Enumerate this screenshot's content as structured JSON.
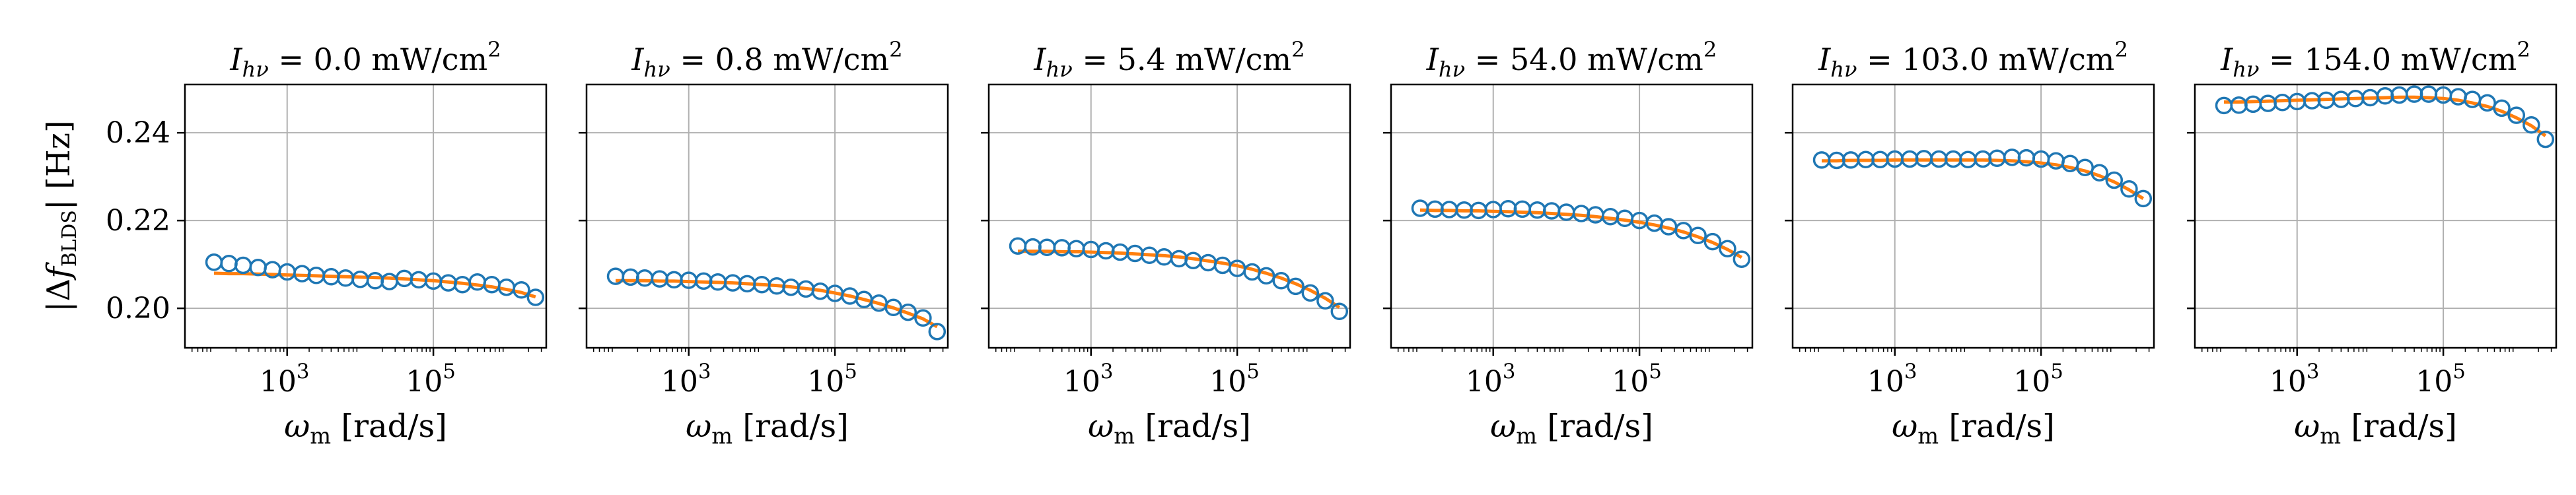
{
  "figure": {
    "ylabel": "|Δf",
    "ylabel_sub": "BLDS",
    "ylabel_rest": "| [Hz]",
    "xlabel_main": "ω",
    "xlabel_sub": "m",
    "xlabel_rest": " [rad/s]",
    "panel_title_var": "I",
    "panel_title_sub": "hν",
    "panel_title_unit": "mW/cm",
    "panel_title_exp": "2"
  },
  "chart_data": [
    {
      "type": "scatter",
      "title": "I_hν = 0.0 mW/cm²",
      "intensity": "0.0",
      "xlabel": "ω_m [rad/s]",
      "ylabel": "|Δf_BLDS| [Hz]",
      "xscale": "log",
      "xlim": [
        40,
        3500000
      ],
      "ylim": [
        0.191,
        0.251
      ],
      "xticks": [
        1000,
        100000
      ],
      "xtick_labels": [
        "10^3",
        "10^5"
      ],
      "yticks": [
        0.2,
        0.22,
        0.24
      ],
      "ytick_labels": [
        "0.20",
        "0.22",
        "0.24"
      ],
      "grid": true,
      "x": [
        100,
        160,
        250,
        400,
        630,
        1000,
        1600,
        2500,
        4000,
        6300,
        10000,
        16000,
        25000,
        40000,
        63000,
        100000,
        160000,
        250000,
        400000,
        630000,
        1000000,
        1600000,
        2500000
      ],
      "series": [
        {
          "type": "scatter",
          "marker": "open-circle",
          "color": "#1f77b4",
          "values": [
            0.2105,
            0.2102,
            0.2098,
            0.2093,
            0.2088,
            0.2083,
            0.2079,
            0.2075,
            0.2072,
            0.2069,
            0.2066,
            0.2063,
            0.2061,
            0.2068,
            0.2065,
            0.2062,
            0.2058,
            0.2054,
            0.206,
            0.2054,
            0.2048,
            0.2042,
            0.2025
          ]
        },
        {
          "type": "line",
          "color": "#ff7f0e",
          "values": [
            0.208,
            0.2079,
            0.2079,
            0.2078,
            0.2077,
            0.2076,
            0.2075,
            0.2074,
            0.2073,
            0.2072,
            0.2071,
            0.207,
            0.2069,
            0.2067,
            0.2065,
            0.2063,
            0.206,
            0.2057,
            0.2053,
            0.2049,
            0.2043,
            0.2036,
            0.2026
          ]
        }
      ]
    },
    {
      "type": "scatter",
      "title": "I_hν = 0.8 mW/cm²",
      "intensity": "0.8",
      "xlabel": "ω_m [rad/s]",
      "ylabel": "|Δf_BLDS| [Hz]",
      "xscale": "log",
      "xlim": [
        40,
        3500000
      ],
      "ylim": [
        0.191,
        0.251
      ],
      "xticks": [
        1000,
        100000
      ],
      "xtick_labels": [
        "10^3",
        "10^5"
      ],
      "yticks": [
        0.2,
        0.22,
        0.24
      ],
      "grid": true,
      "x": [
        100,
        160,
        250,
        400,
        630,
        1000,
        1600,
        2500,
        4000,
        6300,
        10000,
        16000,
        25000,
        40000,
        63000,
        100000,
        160000,
        250000,
        400000,
        630000,
        1000000,
        1600000,
        2500000
      ],
      "series": [
        {
          "type": "scatter",
          "marker": "open-circle",
          "color": "#1f77b4",
          "values": [
            0.2073,
            0.2071,
            0.2069,
            0.2067,
            0.2065,
            0.2064,
            0.2062,
            0.206,
            0.2058,
            0.2056,
            0.2054,
            0.2051,
            0.2048,
            0.2044,
            0.2039,
            0.2034,
            0.2028,
            0.202,
            0.2012,
            0.2002,
            0.1991,
            0.1978,
            0.1947
          ]
        },
        {
          "type": "line",
          "color": "#ff7f0e",
          "values": [
            0.2063,
            0.2063,
            0.2063,
            0.2062,
            0.2062,
            0.2061,
            0.206,
            0.2059,
            0.2058,
            0.2056,
            0.2054,
            0.2052,
            0.2049,
            0.2045,
            0.2041,
            0.2035,
            0.2028,
            0.202,
            0.2011,
            0.2001,
            0.1989,
            0.1976,
            0.1958
          ]
        }
      ]
    },
    {
      "type": "scatter",
      "title": "I_hν = 5.4 mW/cm²",
      "intensity": "5.4",
      "xlabel": "ω_m [rad/s]",
      "ylabel": "|Δf_BLDS| [Hz]",
      "xscale": "log",
      "xlim": [
        40,
        3500000
      ],
      "ylim": [
        0.191,
        0.251
      ],
      "xticks": [
        1000,
        100000
      ],
      "xtick_labels": [
        "10^3",
        "10^5"
      ],
      "yticks": [
        0.2,
        0.22,
        0.24
      ],
      "grid": true,
      "x": [
        100,
        160,
        250,
        400,
        630,
        1000,
        1600,
        2500,
        4000,
        6300,
        10000,
        16000,
        25000,
        40000,
        63000,
        100000,
        160000,
        250000,
        400000,
        630000,
        1000000,
        1600000,
        2500000
      ],
      "series": [
        {
          "type": "scatter",
          "marker": "open-circle",
          "color": "#1f77b4",
          "values": [
            0.2142,
            0.214,
            0.2139,
            0.2138,
            0.2136,
            0.2134,
            0.2131,
            0.2128,
            0.2125,
            0.2121,
            0.2117,
            0.2113,
            0.2109,
            0.2104,
            0.2098,
            0.2091,
            0.2083,
            0.2074,
            0.2063,
            0.205,
            0.2035,
            0.2017,
            0.1993
          ]
        },
        {
          "type": "line",
          "color": "#ff7f0e",
          "values": [
            0.213,
            0.213,
            0.213,
            0.2129,
            0.2129,
            0.2128,
            0.2127,
            0.2126,
            0.2124,
            0.2122,
            0.212,
            0.2117,
            0.2113,
            0.2108,
            0.2103,
            0.2097,
            0.2089,
            0.208,
            0.2069,
            0.2056,
            0.2041,
            0.2023,
            0.2002
          ]
        }
      ]
    },
    {
      "type": "scatter",
      "title": "I_hν = 54.0 mW/cm²",
      "intensity": "54.0",
      "xlabel": "ω_m [rad/s]",
      "ylabel": "|Δf_BLDS| [Hz]",
      "xscale": "log",
      "xlim": [
        40,
        3500000
      ],
      "ylim": [
        0.191,
        0.251
      ],
      "xticks": [
        1000,
        100000
      ],
      "xtick_labels": [
        "10^3",
        "10^5"
      ],
      "yticks": [
        0.2,
        0.22,
        0.24
      ],
      "grid": true,
      "x": [
        100,
        160,
        250,
        400,
        630,
        1000,
        1600,
        2500,
        4000,
        6300,
        10000,
        16000,
        25000,
        40000,
        63000,
        100000,
        160000,
        250000,
        400000,
        630000,
        1000000,
        1600000,
        2500000
      ],
      "series": [
        {
          "type": "scatter",
          "marker": "open-circle",
          "color": "#1f77b4",
          "values": [
            0.2228,
            0.2226,
            0.2225,
            0.2224,
            0.2223,
            0.2225,
            0.2227,
            0.2226,
            0.2224,
            0.2222,
            0.2219,
            0.2216,
            0.2213,
            0.2209,
            0.2205,
            0.22,
            0.2194,
            0.2186,
            0.2177,
            0.2166,
            0.2152,
            0.2136,
            0.2112
          ]
        },
        {
          "type": "line",
          "color": "#ff7f0e",
          "values": [
            0.2224,
            0.2223,
            0.2223,
            0.2222,
            0.2222,
            0.2221,
            0.222,
            0.2219,
            0.2218,
            0.2216,
            0.2214,
            0.2212,
            0.2209,
            0.2205,
            0.2201,
            0.2196,
            0.219,
            0.2183,
            0.2174,
            0.2163,
            0.215,
            0.2134,
            0.2116
          ]
        }
      ]
    },
    {
      "type": "scatter",
      "title": "I_hν = 103.0 mW/cm²",
      "intensity": "103.0",
      "xlabel": "ω_m [rad/s]",
      "ylabel": "|Δf_BLDS| [Hz]",
      "xscale": "log",
      "xlim": [
        40,
        3500000
      ],
      "ylim": [
        0.191,
        0.251
      ],
      "xticks": [
        1000,
        100000
      ],
      "xtick_labels": [
        "10^3",
        "10^5"
      ],
      "yticks": [
        0.2,
        0.22,
        0.24
      ],
      "grid": true,
      "x": [
        100,
        160,
        250,
        400,
        630,
        1000,
        1600,
        2500,
        4000,
        6300,
        10000,
        16000,
        25000,
        40000,
        63000,
        100000,
        160000,
        250000,
        400000,
        630000,
        1000000,
        1600000,
        2500000
      ],
      "series": [
        {
          "type": "scatter",
          "marker": "open-circle",
          "color": "#1f77b4",
          "values": [
            0.2338,
            0.2337,
            0.2338,
            0.2339,
            0.2339,
            0.234,
            0.234,
            0.2341,
            0.234,
            0.234,
            0.2339,
            0.234,
            0.2342,
            0.2344,
            0.2343,
            0.234,
            0.2336,
            0.233,
            0.2321,
            0.2309,
            0.2292,
            0.2272,
            0.225
          ]
        },
        {
          "type": "line",
          "color": "#ff7f0e",
          "values": [
            0.2336,
            0.2336,
            0.2337,
            0.2337,
            0.2337,
            0.2338,
            0.2338,
            0.2338,
            0.2338,
            0.2338,
            0.2338,
            0.2338,
            0.2337,
            0.2336,
            0.2334,
            0.2331,
            0.2327,
            0.2321,
            0.2313,
            0.2302,
            0.2288,
            0.227,
            0.225
          ]
        }
      ]
    },
    {
      "type": "scatter",
      "title": "I_hν = 154.0 mW/cm²",
      "intensity": "154.0",
      "xlabel": "ω_m [rad/s]",
      "ylabel": "|Δf_BLDS| [Hz]",
      "xscale": "log",
      "xlim": [
        40,
        3500000
      ],
      "ylim": [
        0.191,
        0.251
      ],
      "xticks": [
        1000,
        100000
      ],
      "xtick_labels": [
        "10^3",
        "10^5"
      ],
      "yticks": [
        0.2,
        0.22,
        0.24
      ],
      "grid": true,
      "x": [
        100,
        160,
        250,
        400,
        630,
        1000,
        1600,
        2500,
        4000,
        6300,
        10000,
        16000,
        25000,
        40000,
        63000,
        100000,
        160000,
        250000,
        400000,
        630000,
        1000000,
        1600000,
        2500000
      ],
      "series": [
        {
          "type": "scatter",
          "marker": "open-circle",
          "color": "#1f77b4",
          "values": [
            0.2462,
            0.2463,
            0.2465,
            0.2467,
            0.2469,
            0.2471,
            0.2473,
            0.2474,
            0.2476,
            0.2478,
            0.248,
            0.2484,
            0.2486,
            0.2488,
            0.2488,
            0.2486,
            0.2482,
            0.2476,
            0.2468,
            0.2456,
            0.244,
            0.2418,
            0.2385
          ]
        },
        {
          "type": "line",
          "color": "#ff7f0e",
          "values": [
            0.247,
            0.247,
            0.2471,
            0.2472,
            0.2473,
            0.2474,
            0.2475,
            0.2476,
            0.2477,
            0.2478,
            0.2479,
            0.248,
            0.2481,
            0.2481,
            0.248,
            0.2478,
            0.2474,
            0.2468,
            0.246,
            0.2449,
            0.2434,
            0.2416,
            0.2393
          ]
        }
      ]
    }
  ]
}
